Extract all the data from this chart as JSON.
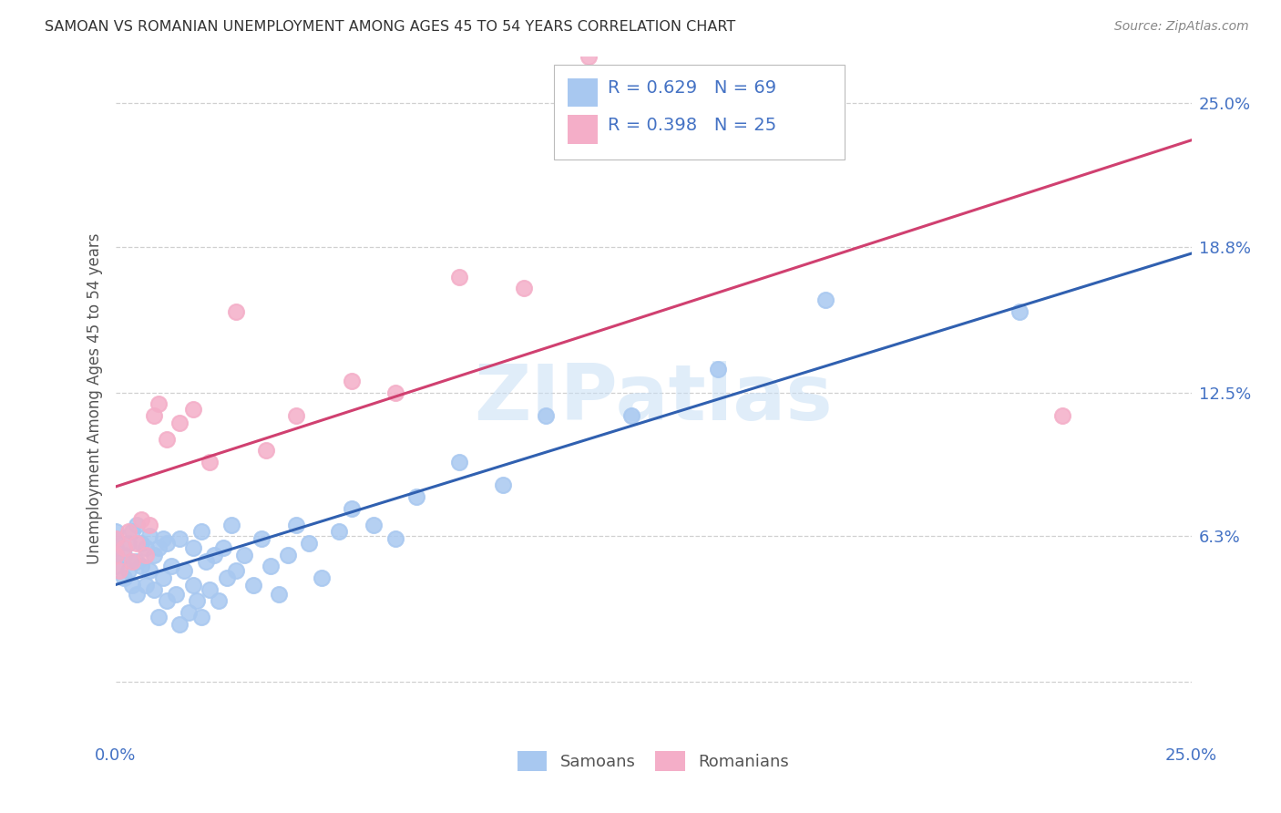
{
  "title": "SAMOAN VS ROMANIAN UNEMPLOYMENT AMONG AGES 45 TO 54 YEARS CORRELATION CHART",
  "source": "Source: ZipAtlas.com",
  "ylabel": "Unemployment Among Ages 45 to 54 years",
  "xlim": [
    0.0,
    0.25
  ],
  "ylim": [
    -0.025,
    0.27
  ],
  "ytick_vals": [
    0.0,
    0.063,
    0.125,
    0.188,
    0.25
  ],
  "ytick_labels": [
    "",
    "6.3%",
    "12.5%",
    "18.8%",
    "25.0%"
  ],
  "xtick_vals": [
    0.0,
    0.025,
    0.05,
    0.075,
    0.1,
    0.125,
    0.15,
    0.175,
    0.2,
    0.225,
    0.25
  ],
  "xtick_labels": [
    "0.0%",
    "",
    "",
    "",
    "",
    "",
    "",
    "",
    "",
    "",
    "25.0%"
  ],
  "samoans_color": "#a8c8f0",
  "romanians_color": "#f4aec8",
  "samoans_line_color": "#3060b0",
  "romanians_line_color": "#d04070",
  "samoans_R": 0.629,
  "samoans_N": 69,
  "romanians_R": 0.398,
  "romanians_N": 25,
  "background_color": "#ffffff",
  "grid_color": "#d0d0d0",
  "title_color": "#333333",
  "axis_tick_color": "#4472c4",
  "watermark_text": "ZIPatlas",
  "watermark_color": "#c8dff5",
  "legend_text_color": "#4472c4",
  "samoans_x": [
    0.0,
    0.0,
    0.0,
    0.0,
    0.0,
    0.002,
    0.002,
    0.003,
    0.003,
    0.004,
    0.004,
    0.004,
    0.005,
    0.005,
    0.005,
    0.006,
    0.006,
    0.007,
    0.007,
    0.008,
    0.008,
    0.009,
    0.009,
    0.01,
    0.01,
    0.011,
    0.011,
    0.012,
    0.012,
    0.013,
    0.014,
    0.015,
    0.015,
    0.016,
    0.017,
    0.018,
    0.018,
    0.019,
    0.02,
    0.02,
    0.021,
    0.022,
    0.023,
    0.024,
    0.025,
    0.026,
    0.027,
    0.028,
    0.03,
    0.032,
    0.034,
    0.036,
    0.038,
    0.04,
    0.042,
    0.045,
    0.048,
    0.052,
    0.055,
    0.06,
    0.065,
    0.07,
    0.08,
    0.09,
    0.1,
    0.12,
    0.14,
    0.165,
    0.21
  ],
  "samoans_y": [
    0.05,
    0.055,
    0.058,
    0.062,
    0.065,
    0.045,
    0.055,
    0.048,
    0.06,
    0.042,
    0.052,
    0.065,
    0.038,
    0.052,
    0.068,
    0.05,
    0.06,
    0.042,
    0.058,
    0.048,
    0.063,
    0.04,
    0.055,
    0.028,
    0.058,
    0.045,
    0.062,
    0.035,
    0.06,
    0.05,
    0.038,
    0.025,
    0.062,
    0.048,
    0.03,
    0.042,
    0.058,
    0.035,
    0.028,
    0.065,
    0.052,
    0.04,
    0.055,
    0.035,
    0.058,
    0.045,
    0.068,
    0.048,
    0.055,
    0.042,
    0.062,
    0.05,
    0.038,
    0.055,
    0.068,
    0.06,
    0.045,
    0.065,
    0.075,
    0.068,
    0.062,
    0.08,
    0.095,
    0.085,
    0.115,
    0.115,
    0.135,
    0.165,
    0.16
  ],
  "romanians_x": [
    0.0,
    0.0,
    0.001,
    0.002,
    0.003,
    0.004,
    0.005,
    0.006,
    0.007,
    0.008,
    0.009,
    0.01,
    0.012,
    0.015,
    0.018,
    0.022,
    0.028,
    0.035,
    0.042,
    0.055,
    0.065,
    0.08,
    0.095,
    0.11,
    0.22
  ],
  "romanians_y": [
    0.055,
    0.062,
    0.048,
    0.058,
    0.065,
    0.052,
    0.06,
    0.07,
    0.055,
    0.068,
    0.115,
    0.12,
    0.105,
    0.112,
    0.118,
    0.095,
    0.16,
    0.1,
    0.115,
    0.13,
    0.125,
    0.175,
    0.17,
    0.27,
    0.115
  ]
}
